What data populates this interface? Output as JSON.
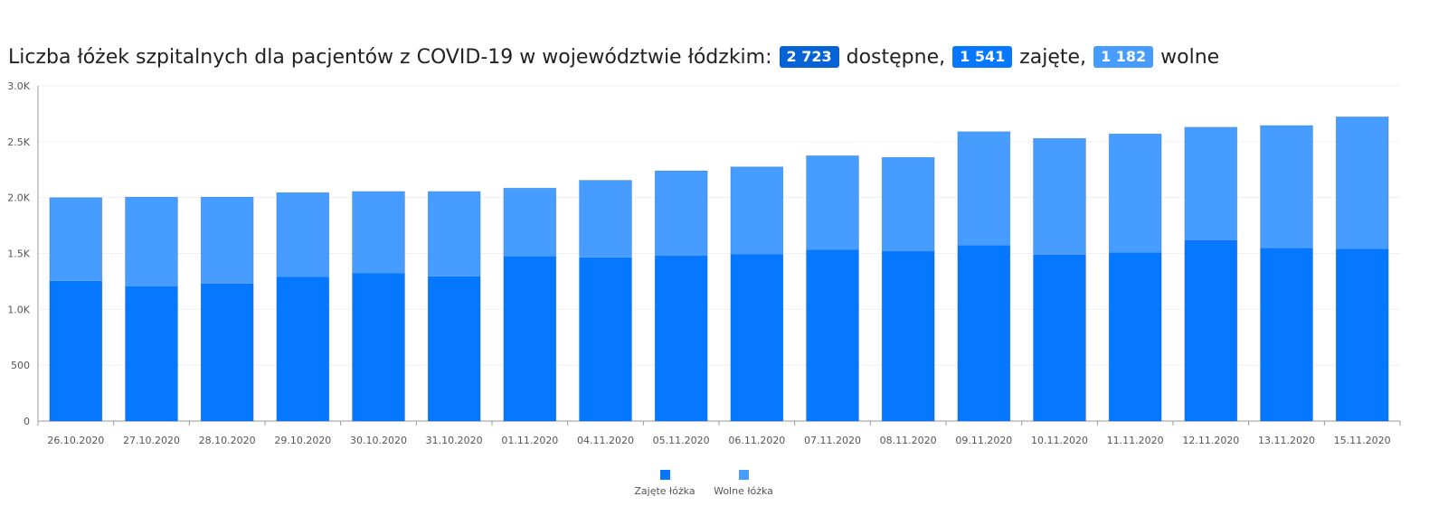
{
  "header": {
    "title_prefix": "Liczba łóżek szpitalnych dla pacjentów z COVID-19 w województwie łódzkim:",
    "available_value": "2 723",
    "available_label": "dostępne,",
    "occupied_value": "1 541",
    "occupied_label": "zajęte,",
    "free_value": "1 182",
    "free_label": "wolne"
  },
  "colors": {
    "available": "#0563d6",
    "occupied": "#0677ff",
    "free": "#469dff"
  },
  "chart_data": {
    "type": "bar",
    "stacked": true,
    "title": "Liczba łóżek szpitalnych dla pacjentów z COVID-19 w województwie łódzkim: 2 723 dostępne, 1 541 zajęte, 1 182 wolne",
    "xlabel": "",
    "ylabel": "",
    "ylim": [
      0,
      3000
    ],
    "yticks": [
      0,
      500,
      1000,
      1500,
      2000,
      2500,
      3000
    ],
    "ytick_labels": [
      "0",
      "500",
      "1.0K",
      "1.5K",
      "2.0K",
      "2.5K",
      "3.0K"
    ],
    "grid": true,
    "legend_position": "bottom",
    "categories": [
      "26.10.2020",
      "27.10.2020",
      "28.10.2020",
      "29.10.2020",
      "30.10.2020",
      "31.10.2020",
      "01.11.2020",
      "04.11.2020",
      "05.11.2020",
      "06.11.2020",
      "07.11.2020",
      "08.11.2020",
      "09.11.2020",
      "10.11.2020",
      "11.11.2020",
      "12.11.2020",
      "13.11.2020",
      "15.11.2020"
    ],
    "series": [
      {
        "name": "Zajęte łóżka",
        "color": "#0677ff",
        "values": [
          1255,
          1205,
          1230,
          1290,
          1325,
          1295,
          1475,
          1465,
          1480,
          1495,
          1535,
          1520,
          1575,
          1490,
          1510,
          1620,
          1550,
          1541
        ]
      },
      {
        "name": "Wolne łóżka",
        "color": "#469dff",
        "values": [
          745,
          800,
          775,
          755,
          730,
          760,
          610,
          690,
          760,
          780,
          840,
          840,
          1015,
          1040,
          1060,
          1010,
          1095,
          1182
        ]
      }
    ]
  }
}
